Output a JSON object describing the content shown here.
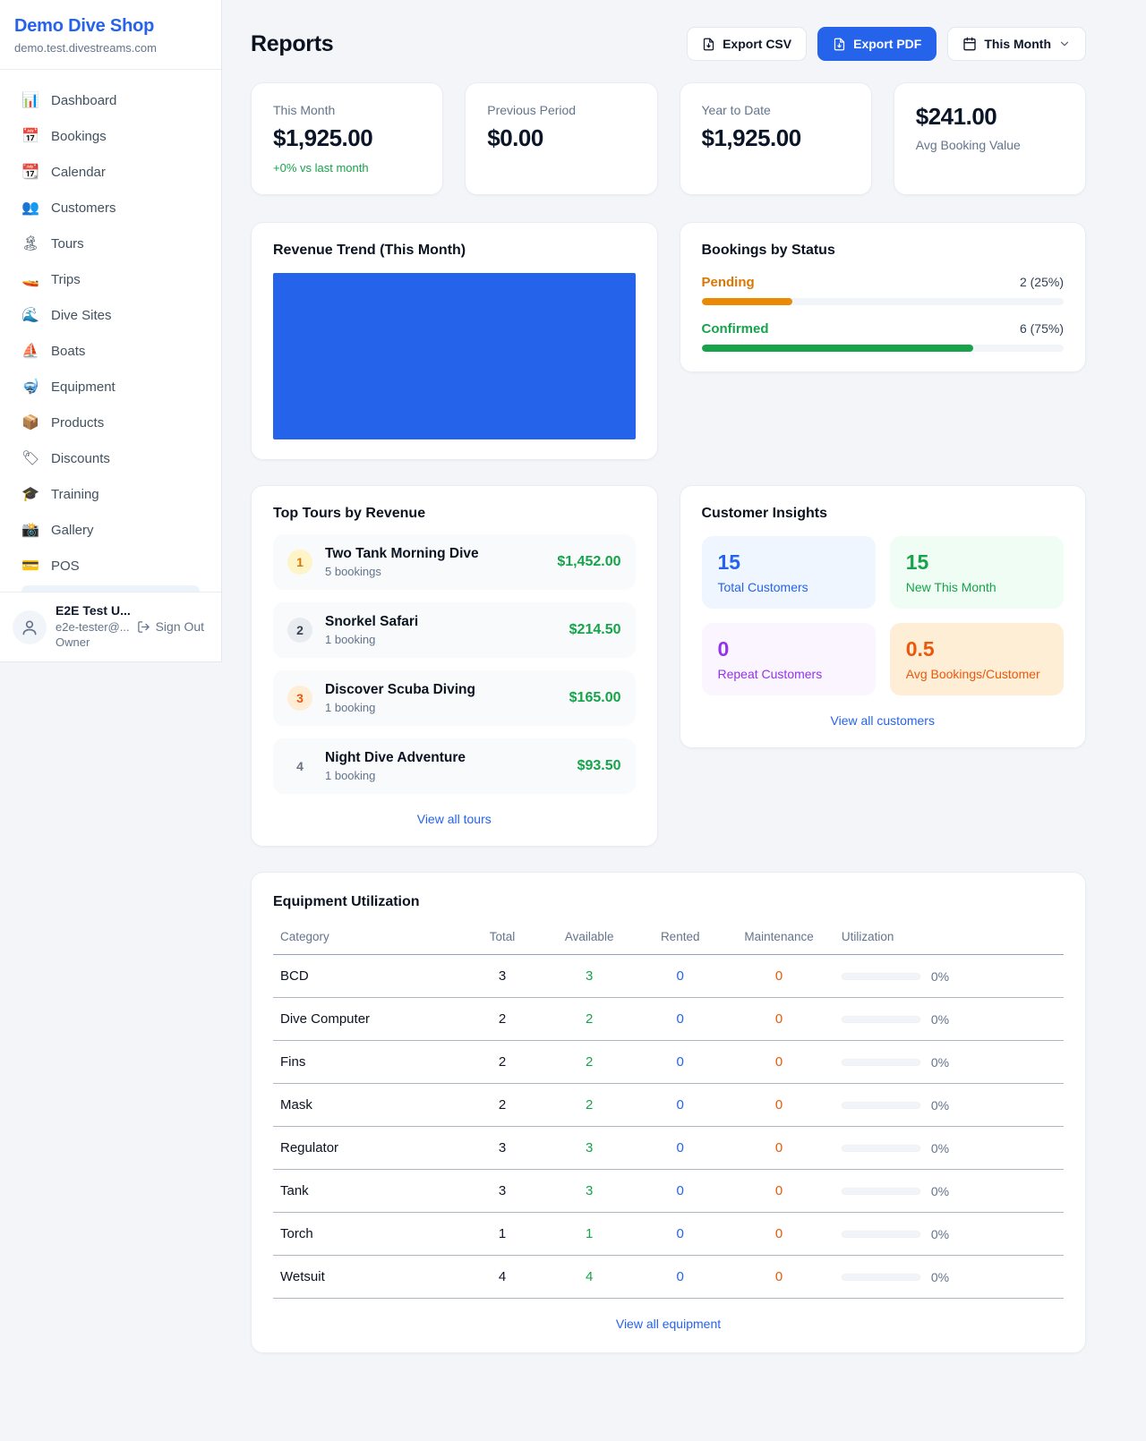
{
  "colors": {
    "accent_blue": "#2563eb",
    "green": "#16a34a",
    "orange_pending": "#ea8a04",
    "orange_deep": "#ea580c",
    "purple": "#9333ea",
    "revenue_bar": "#2563eb"
  },
  "sidebar": {
    "shop_name": "Demo Dive Shop",
    "shop_domain": "demo.test.divestreams.com",
    "items": [
      {
        "icon": "📊",
        "label": "Dashboard"
      },
      {
        "icon": "📅",
        "label": "Bookings"
      },
      {
        "icon": "📆",
        "label": "Calendar"
      },
      {
        "icon": "👥",
        "label": "Customers"
      },
      {
        "icon": "🏝",
        "label": "Tours"
      },
      {
        "icon": "🚤",
        "label": "Trips"
      },
      {
        "icon": "🌊",
        "label": "Dive Sites"
      },
      {
        "icon": "⛵",
        "label": "Boats"
      },
      {
        "icon": "🤿",
        "label": "Equipment"
      },
      {
        "icon": "📦",
        "label": "Products"
      },
      {
        "icon": "🏷",
        "label": "Discounts"
      },
      {
        "icon": "🎓",
        "label": "Training"
      },
      {
        "icon": "📸",
        "label": "Gallery"
      },
      {
        "icon": "💳",
        "label": "POS"
      }
    ],
    "user": {
      "name": "E2E Test U...",
      "email": "e2e-tester@...",
      "role": "Owner",
      "sign_out_label": "Sign Out"
    }
  },
  "header": {
    "title": "Reports",
    "export_csv_label": "Export CSV",
    "export_pdf_label": "Export PDF",
    "period_label": "This Month"
  },
  "stats": {
    "this_month": {
      "label": "This Month",
      "value": "$1,925.00",
      "delta": "+0% vs last month"
    },
    "previous_period": {
      "label": "Previous Period",
      "value": "$0.00"
    },
    "year_to_date": {
      "label": "Year to Date",
      "value": "$1,925.00"
    },
    "avg_booking": {
      "value": "$241.00",
      "label": "Avg Booking Value"
    }
  },
  "revenue_trend": {
    "title": "Revenue Trend (This Month)"
  },
  "bookings_by_status": {
    "title": "Bookings by Status",
    "rows": [
      {
        "label": "Pending",
        "count_text": "2 (25%)",
        "percent": 25,
        "color_class": "orange"
      },
      {
        "label": "Confirmed",
        "count_text": "6 (75%)",
        "percent": 75,
        "color_class": "green"
      }
    ]
  },
  "top_tours": {
    "title": "Top Tours by Revenue",
    "items": [
      {
        "rank": "1",
        "rank_class": "rank-1",
        "name": "Two Tank Morning Dive",
        "bookings": "5 bookings",
        "amount": "$1,452.00"
      },
      {
        "rank": "2",
        "rank_class": "rank-2",
        "name": "Snorkel Safari",
        "bookings": "1 booking",
        "amount": "$214.50"
      },
      {
        "rank": "3",
        "rank_class": "rank-3",
        "name": "Discover Scuba Diving",
        "bookings": "1 booking",
        "amount": "$165.00"
      },
      {
        "rank": "4",
        "rank_class": "rank-4",
        "name": "Night Dive Adventure",
        "bookings": "1 booking",
        "amount": "$93.50"
      }
    ],
    "view_all_label": "View all tours"
  },
  "customer_insights": {
    "title": "Customer Insights",
    "tiles": [
      {
        "value": "15",
        "label": "Total Customers",
        "tile_class": "tile-blue"
      },
      {
        "value": "15",
        "label": "New This Month",
        "tile_class": "tile-green"
      },
      {
        "value": "0",
        "label": "Repeat Customers",
        "tile_class": "tile-purple"
      },
      {
        "value": "0.5",
        "label": "Avg Bookings/Customer",
        "tile_class": "tile-orange"
      }
    ],
    "view_all_label": "View all customers"
  },
  "equipment": {
    "title": "Equipment Utilization",
    "columns": {
      "category": "Category",
      "total": "Total",
      "available": "Available",
      "rented": "Rented",
      "maintenance": "Maintenance",
      "utilization": "Utilization"
    },
    "rows": [
      {
        "category": "BCD",
        "total": "3",
        "available": "3",
        "rented": "0",
        "maintenance": "0",
        "utilization_pct": 0,
        "utilization_text": "0%"
      },
      {
        "category": "Dive Computer",
        "total": "2",
        "available": "2",
        "rented": "0",
        "maintenance": "0",
        "utilization_pct": 0,
        "utilization_text": "0%"
      },
      {
        "category": "Fins",
        "total": "2",
        "available": "2",
        "rented": "0",
        "maintenance": "0",
        "utilization_pct": 0,
        "utilization_text": "0%"
      },
      {
        "category": "Mask",
        "total": "2",
        "available": "2",
        "rented": "0",
        "maintenance": "0",
        "utilization_pct": 0,
        "utilization_text": "0%"
      },
      {
        "category": "Regulator",
        "total": "3",
        "available": "3",
        "rented": "0",
        "maintenance": "0",
        "utilization_pct": 0,
        "utilization_text": "0%"
      },
      {
        "category": "Tank",
        "total": "3",
        "available": "3",
        "rented": "0",
        "maintenance": "0",
        "utilization_pct": 0,
        "utilization_text": "0%"
      },
      {
        "category": "Torch",
        "total": "1",
        "available": "1",
        "rented": "0",
        "maintenance": "0",
        "utilization_pct": 0,
        "utilization_text": "0%"
      },
      {
        "category": "Wetsuit",
        "total": "4",
        "available": "4",
        "rented": "0",
        "maintenance": "0",
        "utilization_pct": 0,
        "utilization_text": "0%"
      }
    ],
    "view_all_label": "View all equipment"
  }
}
